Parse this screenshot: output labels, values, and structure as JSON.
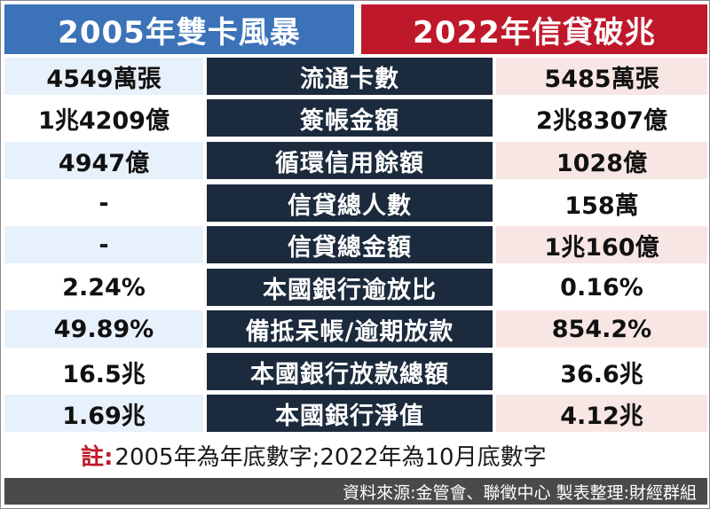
{
  "header": {
    "left_title": "2005年雙卡風暴",
    "right_title": "2022年信貸破兆"
  },
  "rows": [
    {
      "left": "4549萬張",
      "label": "流通卡數",
      "right": "5485萬張"
    },
    {
      "left": "1兆4209億",
      "label": "簽帳金額",
      "right": "2兆8307億"
    },
    {
      "left": "4947億",
      "label": "循環信用餘額",
      "right": "1028億"
    },
    {
      "left": "-",
      "label": "信貸總人數",
      "right": "158萬"
    },
    {
      "left": "-",
      "label": "信貸總金額",
      "right": "1兆160億"
    },
    {
      "left": "2.24%",
      "label": "本國銀行逾放比",
      "right": "0.16%"
    },
    {
      "left": "49.89%",
      "label": "備抵呆帳/逾期放款",
      "right": "854.2%"
    },
    {
      "left": "16.5兆",
      "label": "本國銀行放款總額",
      "right": "36.6兆"
    },
    {
      "left": "1.69兆",
      "label": "本國銀行淨值",
      "right": "4.12兆"
    }
  ],
  "note": {
    "label": "註:",
    "text": "2005年為年底數字;2022年為10月底數字"
  },
  "footer": {
    "source": "資料來源:金管會、聯徵中心 製表整理:財經群組"
  },
  "colors": {
    "left_header": "#3c72b8",
    "right_header": "#c0182b",
    "label_bg": "#1b2a3c",
    "left_shade": "#e7f1fb",
    "right_shade": "#f7e6e4",
    "footer_bg": "#4a4a4a"
  }
}
